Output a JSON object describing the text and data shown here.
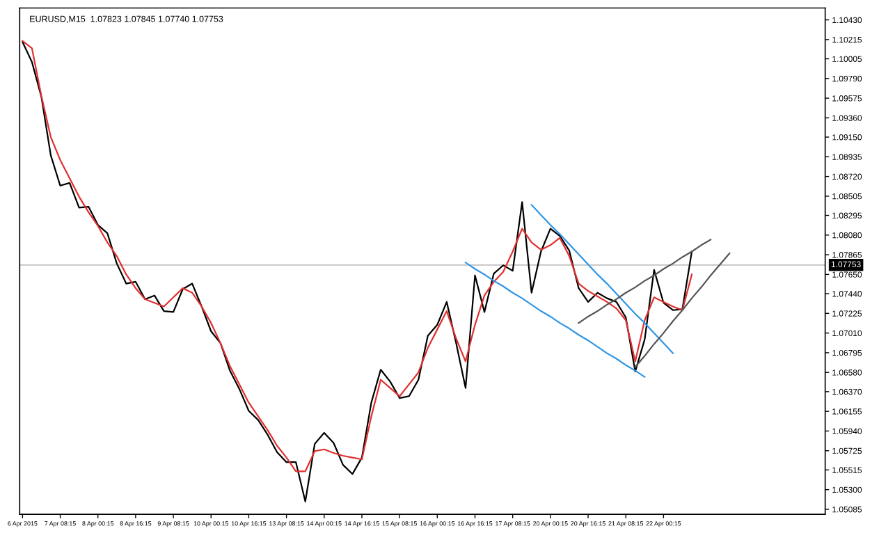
{
  "chart_data": {
    "type": "line",
    "title": "EURUSD,M15  1.07823 1.07845 1.07740 1.07753",
    "categories": [
      "6 Apr 2015",
      null,
      null,
      null,
      "7 Apr 08:15",
      null,
      null,
      null,
      "8 Apr 00:15",
      null,
      null,
      null,
      "8 Apr 16:15",
      null,
      null,
      null,
      "9 Apr 08:15",
      null,
      null,
      null,
      "10 Apr 00:15",
      null,
      null,
      null,
      "10 Apr 16:15",
      null,
      null,
      null,
      "13 Apr 08:15",
      null,
      null,
      null,
      "14 Apr 00:15",
      null,
      null,
      null,
      "14 Apr 16:15",
      null,
      null,
      null,
      "15 Apr 08:15",
      null,
      null,
      null,
      "16 Apr 00:15",
      null,
      null,
      null,
      "16 Apr 16:15",
      null,
      null,
      null,
      "17 Apr 08:15",
      null,
      null,
      null,
      "20 Apr 00:15",
      null,
      null,
      null,
      "20 Apr 16:15",
      null,
      null,
      null,
      "21 Apr 08:15",
      null,
      null,
      null,
      "22 Apr 00:15",
      null,
      null,
      null,
      null,
      null,
      null,
      null,
      null,
      null,
      null,
      null,
      null,
      null,
      null,
      null,
      null,
      null
    ],
    "ylim": [
      1.0503,
      1.1056
    ],
    "yticks": [
      {
        "value": 1.1043,
        "label": "1.10430"
      },
      {
        "value": 1.10215,
        "label": "1.10215"
      },
      {
        "value": 1.10005,
        "label": "1.10005"
      },
      {
        "value": 1.0979,
        "label": "1.09790"
      },
      {
        "value": 1.09575,
        "label": "1.09575"
      },
      {
        "value": 1.0936,
        "label": "1.09360"
      },
      {
        "value": 1.0915,
        "label": "1.09150"
      },
      {
        "value": 1.08935,
        "label": "1.08935"
      },
      {
        "value": 1.0872,
        "label": "1.08720"
      },
      {
        "value": 1.08505,
        "label": "1.08505"
      },
      {
        "value": 1.08295,
        "label": "1.08295"
      },
      {
        "value": 1.0808,
        "label": "1.08080"
      },
      {
        "value": 1.07865,
        "label": "1.07865"
      },
      {
        "value": 1.0765,
        "label": "1.07650"
      },
      {
        "value": 1.0744,
        "label": "1.07440"
      },
      {
        "value": 1.07225,
        "label": "1.07225"
      },
      {
        "value": 1.0701,
        "label": "1.07010"
      },
      {
        "value": 1.06795,
        "label": "1.06795"
      },
      {
        "value": 1.0658,
        "label": "1.06580"
      },
      {
        "value": 1.0637,
        "label": "1.06370"
      },
      {
        "value": 1.06155,
        "label": "1.06155"
      },
      {
        "value": 1.0594,
        "label": "1.05940"
      },
      {
        "value": 1.05725,
        "label": "1.05725"
      },
      {
        "value": 1.05515,
        "label": "1.05515"
      },
      {
        "value": 1.053,
        "label": "1.05300"
      },
      {
        "value": 1.05085,
        "label": "1.05085"
      }
    ],
    "grid": false,
    "legend": false,
    "ref_lines": [
      {
        "axis": "y",
        "value": 1.07753,
        "label": "1.07753",
        "color": "#c0c0c0"
      }
    ],
    "series": [
      {
        "color": "#000000",
        "values": [
          1.1019,
          1.0997,
          1.0959,
          1.0895,
          1.0862,
          1.0865,
          1.0838,
          1.0839,
          1.0819,
          1.081,
          1.0777,
          1.0755,
          1.0757,
          1.0738,
          1.0742,
          1.0725,
          1.0724,
          1.0749,
          1.0755,
          1.073,
          1.0703,
          1.069,
          1.066,
          1.064,
          1.0616,
          1.0606,
          1.059,
          1.0571,
          1.056,
          1.056,
          1.0517,
          1.058,
          1.0592,
          1.0581,
          1.0557,
          1.0547,
          1.0565,
          1.0625,
          1.0661,
          1.0648,
          1.063,
          1.0632,
          1.065,
          1.0698,
          1.071,
          1.0735,
          1.069,
          1.0641,
          1.0764,
          1.0724,
          1.0766,
          1.0775,
          1.0769,
          1.0844,
          1.0745,
          1.079,
          1.0815,
          1.0807,
          1.0791,
          1.075,
          1.0735,
          1.0745,
          1.0739,
          1.0735,
          1.0718,
          1.0659,
          1.0694,
          1.077,
          1.0734,
          1.0726,
          1.0727,
          1.079,
          null,
          null,
          null,
          null,
          null,
          null,
          null,
          null,
          null,
          null,
          null,
          null,
          null,
          null
        ]
      },
      {
        "color": "#e03030",
        "values": [
          1.102,
          1.1012,
          1.096,
          1.0915,
          1.089,
          1.087,
          1.085,
          1.0833,
          1.0818,
          1.08,
          1.0785,
          1.0765,
          1.075,
          1.0738,
          1.0734,
          1.073,
          1.074,
          1.075,
          1.0745,
          1.073,
          1.0712,
          1.069,
          1.0665,
          1.0645,
          1.0625,
          1.061,
          1.0595,
          1.0578,
          1.0565,
          1.055,
          1.055,
          1.0572,
          1.0574,
          1.057,
          1.0567,
          1.0565,
          1.0563,
          1.061,
          1.065,
          1.0641,
          1.0632,
          1.0645,
          1.0658,
          1.0685,
          1.0705,
          1.0725,
          1.0695,
          1.067,
          1.071,
          1.0742,
          1.0757,
          1.0768,
          1.079,
          1.0815,
          1.08,
          1.0792,
          1.0797,
          1.0805,
          1.0785,
          1.0755,
          1.0747,
          1.0741,
          1.0735,
          1.0728,
          1.0715,
          1.067,
          1.0715,
          1.074,
          1.0735,
          1.073,
          1.0726,
          1.0765,
          null,
          null,
          null,
          null,
          null,
          null,
          null,
          null,
          null,
          null,
          null,
          null,
          null,
          null
        ]
      },
      {
        "color": "#2f96e6",
        "values": [
          null,
          null,
          null,
          null,
          null,
          null,
          null,
          null,
          null,
          null,
          null,
          null,
          null,
          null,
          null,
          null,
          null,
          null,
          null,
          null,
          null,
          null,
          null,
          null,
          null,
          null,
          null,
          null,
          null,
          null,
          null,
          null,
          null,
          null,
          null,
          null,
          null,
          null,
          null,
          null,
          null,
          null,
          null,
          null,
          null,
          null,
          null,
          1.0778,
          1.0771,
          1.0765,
          1.0758,
          1.0752,
          1.0745,
          1.0739,
          1.0732,
          1.0725,
          1.0719,
          1.0712,
          1.0706,
          1.0699,
          1.0693,
          1.0686,
          1.0679,
          1.0673,
          1.0666,
          1.066,
          1.0653,
          null,
          null,
          null,
          null,
          null,
          null,
          null,
          null,
          null,
          null,
          null,
          null,
          null,
          null,
          null,
          null,
          null,
          null,
          null
        ]
      },
      {
        "color": "#2f96e6",
        "values": [
          null,
          null,
          null,
          null,
          null,
          null,
          null,
          null,
          null,
          null,
          null,
          null,
          null,
          null,
          null,
          null,
          null,
          null,
          null,
          null,
          null,
          null,
          null,
          null,
          null,
          null,
          null,
          null,
          null,
          null,
          null,
          null,
          null,
          null,
          null,
          null,
          null,
          null,
          null,
          null,
          null,
          null,
          null,
          null,
          null,
          null,
          null,
          null,
          null,
          null,
          null,
          null,
          null,
          null,
          1.0841,
          1.083,
          1.0819,
          1.0809,
          1.0798,
          1.0787,
          1.0776,
          1.0765,
          1.0755,
          1.0744,
          1.0733,
          1.0722,
          1.0712,
          1.0701,
          1.069,
          1.0679,
          null,
          null,
          null,
          null,
          null,
          null,
          null,
          null,
          null,
          null,
          null,
          null,
          null,
          null,
          null,
          null
        ]
      },
      {
        "color": "#555555",
        "values": [
          null,
          null,
          null,
          null,
          null,
          null,
          null,
          null,
          null,
          null,
          null,
          null,
          null,
          null,
          null,
          null,
          null,
          null,
          null,
          null,
          null,
          null,
          null,
          null,
          null,
          null,
          null,
          null,
          null,
          null,
          null,
          null,
          null,
          null,
          null,
          null,
          null,
          null,
          null,
          null,
          null,
          null,
          null,
          null,
          null,
          null,
          null,
          null,
          null,
          null,
          null,
          null,
          null,
          null,
          null,
          null,
          null,
          null,
          null,
          1.0712,
          1.0719,
          1.0725,
          1.0732,
          1.0738,
          1.0745,
          1.0751,
          1.0758,
          1.0764,
          1.0771,
          1.0777,
          1.0784,
          1.079,
          1.0797,
          1.0803,
          null,
          null,
          null,
          null,
          null,
          null,
          null,
          null,
          null,
          null,
          null,
          null
        ]
      },
      {
        "color": "#555555",
        "values": [
          null,
          null,
          null,
          null,
          null,
          null,
          null,
          null,
          null,
          null,
          null,
          null,
          null,
          null,
          null,
          null,
          null,
          null,
          null,
          null,
          null,
          null,
          null,
          null,
          null,
          null,
          null,
          null,
          null,
          null,
          null,
          null,
          null,
          null,
          null,
          null,
          null,
          null,
          null,
          null,
          null,
          null,
          null,
          null,
          null,
          null,
          null,
          null,
          null,
          null,
          null,
          null,
          null,
          null,
          null,
          null,
          null,
          null,
          null,
          null,
          null,
          null,
          null,
          null,
          null,
          1.0664,
          1.0676,
          1.0689,
          1.0701,
          1.0714,
          1.0726,
          1.0739,
          1.0751,
          1.0764,
          1.0776,
          1.0788,
          null,
          null,
          null,
          null,
          null,
          null,
          null,
          null,
          null,
          null
        ]
      }
    ]
  }
}
